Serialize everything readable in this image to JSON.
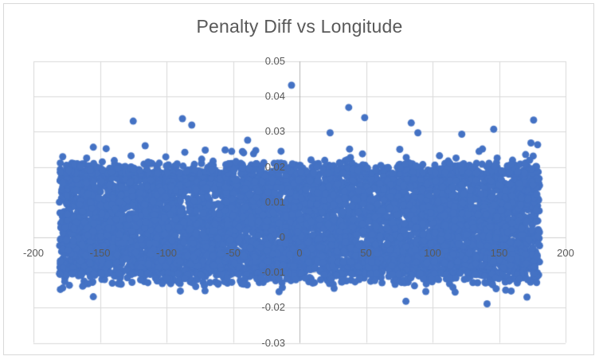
{
  "chart": {
    "title": "Penalty Diff vs Longitude"
  },
  "chart_data": {
    "type": "scatter",
    "title": "Penalty Diff vs Longitude",
    "xlabel": "",
    "ylabel": "",
    "xlim": [
      -200,
      200
    ],
    "ylim": [
      -0.03,
      0.05
    ],
    "x_ticks": [
      -200,
      -150,
      -100,
      -50,
      0,
      50,
      100,
      150,
      200
    ],
    "x_tick_labels": [
      "-200",
      "-150",
      "-100",
      "-50",
      "0",
      "50",
      "100",
      "150",
      "200"
    ],
    "y_ticks": [
      0.05,
      0.04,
      0.03,
      0.02,
      0.01,
      0,
      -0.01,
      -0.02,
      -0.03
    ],
    "y_tick_labels": [
      "0.05",
      "0.04",
      "0.03",
      "0.02",
      "0.01",
      "0",
      "-0.01",
      "-0.02",
      "-0.03"
    ],
    "grid": true,
    "legend": false,
    "marker": {
      "shape": "circle",
      "radius_px": 4.5,
      "color": "#4472C4"
    },
    "colors": {
      "point": "#4472C4",
      "gridline": "#D9D9D9",
      "vertical_axis_line": "#B3B3B3",
      "horizontal_axis_line": "#CFCFCF",
      "tick_text": "#595959",
      "title_text": "#595959",
      "chart_border": "#D9D9D9",
      "background": "#FFFFFF"
    },
    "point_cloud": {
      "seed": 20,
      "core": {
        "n": 6500,
        "x_range": [
          -180.5,
          180.5
        ],
        "y_range": [
          -0.0102,
          0.0182
        ]
      },
      "edge_top": {
        "n": 420,
        "y_start": 0.0182,
        "y_extent": 0.003
      },
      "edge_bottom": {
        "n": 320,
        "y_start": -0.0102,
        "y_extent": 0.0032
      },
      "fringe_top": {
        "n": 80,
        "y_min": 0.019,
        "y_max": 0.0252
      },
      "fringe_bottom": {
        "n": 45,
        "y_min": -0.0115,
        "y_max": -0.0155
      }
    },
    "outliers_high": [
      [
        -178,
        0.0229
      ],
      [
        -160,
        0.0225
      ],
      [
        -155,
        0.0256
      ],
      [
        -125,
        0.033
      ],
      [
        -116,
        0.026
      ],
      [
        -88,
        0.0337
      ],
      [
        -81,
        0.0319
      ],
      [
        -51,
        0.0244
      ],
      [
        -42,
        0.024
      ],
      [
        -39,
        0.0276
      ],
      [
        -6,
        0.0432
      ],
      [
        23,
        0.0297
      ],
      [
        37,
        0.0369
      ],
      [
        49,
        0.034
      ],
      [
        84,
        0.0325
      ],
      [
        89,
        0.0297
      ],
      [
        122,
        0.0293
      ],
      [
        135,
        0.0244
      ],
      [
        146,
        0.0307
      ],
      [
        170,
        0.0235
      ],
      [
        173,
        0.0219
      ],
      [
        174,
        0.0268
      ],
      [
        176,
        0.0333
      ],
      [
        179,
        0.0263
      ]
    ],
    "outliers_low": [
      [
        -178,
        -0.0144
      ],
      [
        -163,
        -0.0139
      ],
      [
        -155,
        -0.0169
      ],
      [
        -134,
        -0.0133
      ],
      [
        -114,
        -0.0129
      ],
      [
        -107,
        -0.0124
      ],
      [
        -78,
        -0.014
      ],
      [
        -71,
        -0.0152
      ],
      [
        -42,
        -0.0133
      ],
      [
        10,
        -0.0128
      ],
      [
        26,
        -0.0145
      ],
      [
        80,
        -0.0182
      ],
      [
        117,
        -0.0156
      ],
      [
        141,
        -0.0189
      ],
      [
        155,
        -0.015
      ],
      [
        171,
        -0.017
      ]
    ],
    "summary": "Dense uniform band of scatter points spanning longitude -180 to 180 with penalty diff mostly between -0.010 and 0.018; sparse outliers up to 0.043 and down to about -0.019."
  }
}
